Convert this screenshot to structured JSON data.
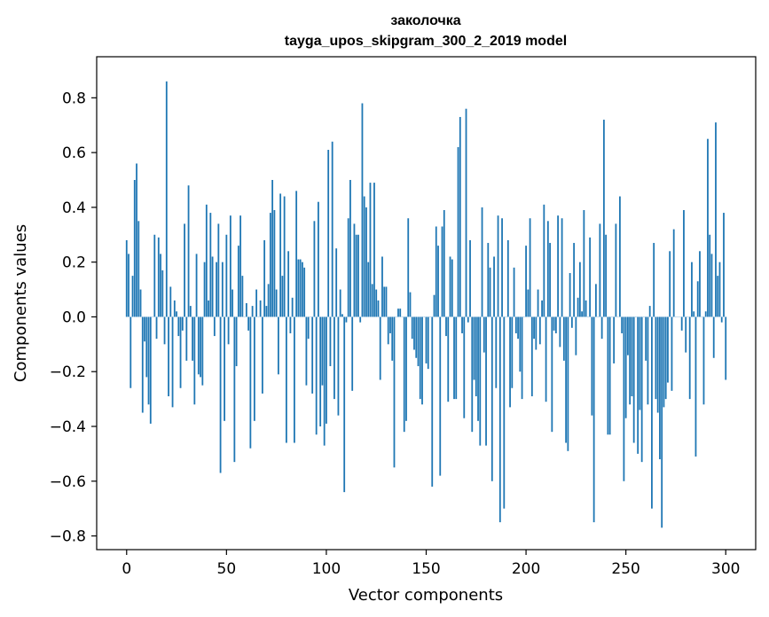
{
  "chart_data": {
    "type": "bar",
    "title": "заколочка",
    "subtitle": "tayga_upos_skipgram_300_2_2019 model",
    "xlabel": "Vector components",
    "ylabel": "Components values",
    "xlim": [
      -15,
      315
    ],
    "ylim": [
      -0.85,
      0.95
    ],
    "xticks": [
      0,
      50,
      100,
      150,
      200,
      250,
      300
    ],
    "xtick_labels": [
      "0",
      "50",
      "100",
      "150",
      "200",
      "250",
      "300"
    ],
    "yticks": [
      -0.8,
      -0.6,
      -0.4,
      -0.2,
      0.0,
      0.2,
      0.4,
      0.6,
      0.8
    ],
    "ytick_labels": [
      "−0.8",
      "−0.6",
      "−0.4",
      "−0.2",
      "0.0",
      "0.2",
      "0.4",
      "0.6",
      "0.8"
    ],
    "bar_color": "#1f77b4",
    "grid": false,
    "values": [
      0.28,
      0.23,
      -0.26,
      0.15,
      0.5,
      0.56,
      0.35,
      0.1,
      -0.35,
      -0.09,
      -0.22,
      -0.32,
      -0.39,
      0.0,
      0.3,
      -0.08,
      0.29,
      0.23,
      0.17,
      -0.1,
      0.86,
      -0.29,
      0.11,
      -0.33,
      0.06,
      0.02,
      -0.07,
      -0.26,
      -0.05,
      0.34,
      -0.16,
      0.48,
      0.04,
      -0.16,
      -0.32,
      0.23,
      -0.21,
      -0.22,
      -0.25,
      0.2,
      0.41,
      0.06,
      0.38,
      0.22,
      -0.07,
      0.2,
      0.34,
      -0.57,
      0.2,
      -0.38,
      0.3,
      -0.1,
      0.37,
      0.1,
      -0.53,
      -0.18,
      0.26,
      0.37,
      0.15,
      0.0,
      0.05,
      -0.05,
      -0.48,
      0.04,
      -0.38,
      0.1,
      0.0,
      0.06,
      -0.28,
      0.28,
      0.04,
      0.12,
      0.38,
      0.5,
      0.39,
      0.1,
      -0.21,
      0.45,
      0.15,
      0.44,
      -0.46,
      0.24,
      -0.06,
      0.07,
      -0.46,
      0.46,
      0.21,
      0.21,
      0.2,
      0.18,
      -0.25,
      -0.08,
      0.0,
      -0.28,
      0.35,
      -0.43,
      0.42,
      -0.4,
      -0.25,
      -0.47,
      -0.39,
      0.61,
      -0.18,
      0.64,
      -0.3,
      0.25,
      -0.36,
      0.1,
      0.01,
      -0.64,
      -0.02,
      0.36,
      0.5,
      -0.27,
      0.34,
      0.3,
      0.3,
      -0.02,
      0.78,
      0.44,
      0.4,
      0.2,
      0.49,
      0.12,
      0.49,
      0.1,
      0.06,
      -0.23,
      0.22,
      0.11,
      0.11,
      -0.1,
      -0.06,
      -0.16,
      -0.55,
      0.0,
      0.03,
      0.03,
      0.0,
      -0.42,
      -0.38,
      0.36,
      0.09,
      -0.08,
      -0.12,
      -0.15,
      -0.18,
      -0.3,
      -0.32,
      0.0,
      -0.17,
      -0.19,
      0.0,
      -0.62,
      0.08,
      0.33,
      0.26,
      -0.58,
      0.33,
      0.39,
      -0.07,
      -0.31,
      0.22,
      0.21,
      -0.3,
      -0.3,
      0.62,
      0.73,
      -0.06,
      -0.37,
      0.76,
      -0.02,
      0.28,
      -0.42,
      -0.23,
      -0.29,
      -0.38,
      -0.47,
      0.4,
      -0.13,
      -0.47,
      0.27,
      0.18,
      -0.6,
      0.22,
      -0.26,
      0.37,
      -0.75,
      0.36,
      -0.7,
      0.0,
      0.28,
      -0.33,
      -0.26,
      0.18,
      -0.06,
      -0.08,
      -0.2,
      -0.3,
      0.0,
      0.26,
      0.1,
      0.36,
      -0.29,
      -0.08,
      -0.12,
      0.1,
      -0.1,
      0.06,
      0.41,
      -0.31,
      0.35,
      0.27,
      -0.42,
      -0.05,
      -0.06,
      0.37,
      -0.11,
      0.36,
      -0.16,
      -0.46,
      -0.49,
      0.16,
      -0.04,
      0.27,
      -0.14,
      0.07,
      0.2,
      0.02,
      0.39,
      0.06,
      0.0,
      0.29,
      -0.36,
      -0.75,
      0.12,
      0.0,
      0.34,
      -0.08,
      0.72,
      0.3,
      -0.43,
      -0.43,
      0.0,
      -0.17,
      0.34,
      0.0,
      0.44,
      -0.06,
      -0.6,
      -0.37,
      -0.14,
      -0.32,
      -0.29,
      -0.46,
      0.0,
      -0.5,
      -0.34,
      -0.53,
      0.0,
      -0.16,
      -0.32,
      0.04,
      -0.7,
      0.27,
      -0.3,
      -0.35,
      -0.52,
      -0.77,
      -0.33,
      -0.3,
      -0.24,
      0.24,
      -0.27,
      0.32,
      0.0,
      0.0,
      0.0,
      -0.05,
      0.39,
      -0.13,
      0.0,
      -0.3,
      0.2,
      0.02,
      -0.51,
      0.13,
      0.24,
      0.0,
      -0.32,
      0.02,
      0.65,
      0.3,
      0.23,
      -0.15,
      0.71,
      0.15,
      0.2,
      -0.02,
      0.38,
      -0.23
    ]
  }
}
